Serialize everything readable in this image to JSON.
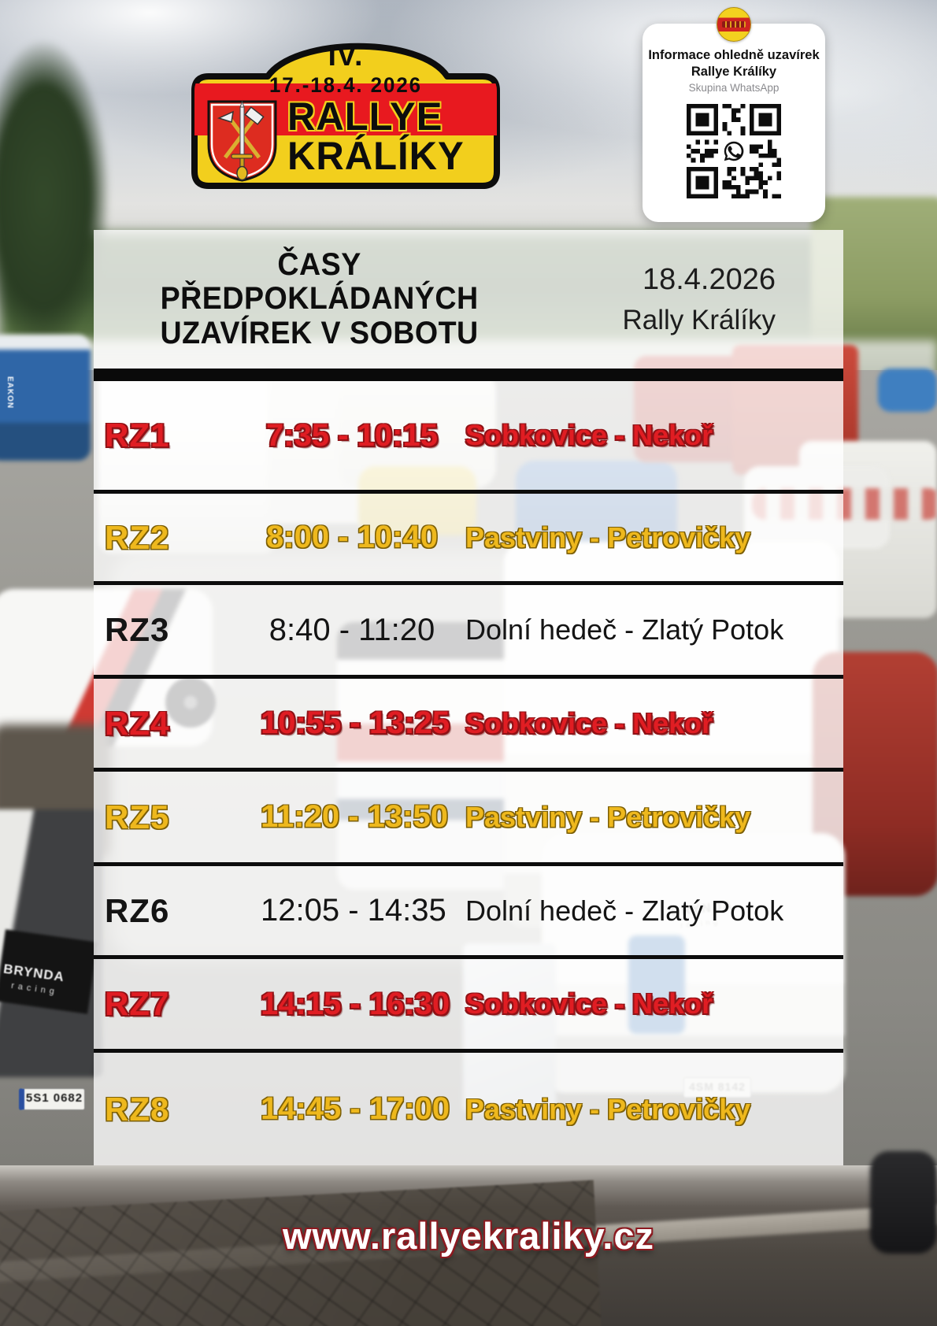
{
  "logo_plate": {
    "edition": "IV.",
    "dates": "17.-18.4. 2026",
    "name_line1": "RALLYE",
    "name_line2": "KRÁLÍKY"
  },
  "whatsapp_card": {
    "title_line1": "Informace ohledně uzavírek",
    "title_line2": "Rallye Králíky",
    "subtitle": "Skupina WhatsApp",
    "qr_icon": "whatsapp-qr-code"
  },
  "header": {
    "title_line1": "ČASY PŘEDPOKLÁDANÝCH",
    "title_line2": "UZAVÍREK V SOBOTU",
    "date": "18.4.2026",
    "event": "Rally Králíky"
  },
  "schedule": {
    "rows": [
      {
        "stage": "RZ1",
        "time": "7:35 - 10:15",
        "section": "Sobkovice - Nekoř",
        "color": "red"
      },
      {
        "stage": "RZ2",
        "time": "8:00 - 10:40",
        "section": "Pastviny - Petrovičky",
        "color": "yellow"
      },
      {
        "stage": "RZ3",
        "time": "8:40 - 11:20",
        "section": "Dolní hedeč - Zlatý Potok",
        "color": "black"
      },
      {
        "stage": "RZ4",
        "time": "10:55 - 13:25",
        "section": "Sobkovice - Nekoř",
        "color": "red"
      },
      {
        "stage": "RZ5",
        "time": "11:20 - 13:50",
        "section": "Pastviny - Petrovičky",
        "color": "yellow"
      },
      {
        "stage": "RZ6",
        "time": "12:05 - 14:35",
        "section": "Dolní hedeč - Zlatý Potok",
        "color": "black"
      },
      {
        "stage": "RZ7",
        "time": "14:15 - 16:30",
        "section": "Sobkovice - Nekoř",
        "color": "red"
      },
      {
        "stage": "RZ8",
        "time": "14:45 - 17:00",
        "section": "Pastviny - Petrovičky",
        "color": "yellow"
      }
    ]
  },
  "footer": {
    "website": "www.rallyekraliky.cz"
  },
  "background_photo_text": {
    "bus": "EAKON",
    "van_brand": "BRYNDA",
    "van_brand_sub": "racing",
    "license_plate_left": "5S1 0682",
    "license_plate_right": "4SM 8142"
  },
  "colors": {
    "plate_yellow": "#f2cf1d",
    "stripe_red": "#e8191f",
    "row_red": "#e01d23",
    "row_yellow": "#eeb81d",
    "row_black": "#141414"
  }
}
